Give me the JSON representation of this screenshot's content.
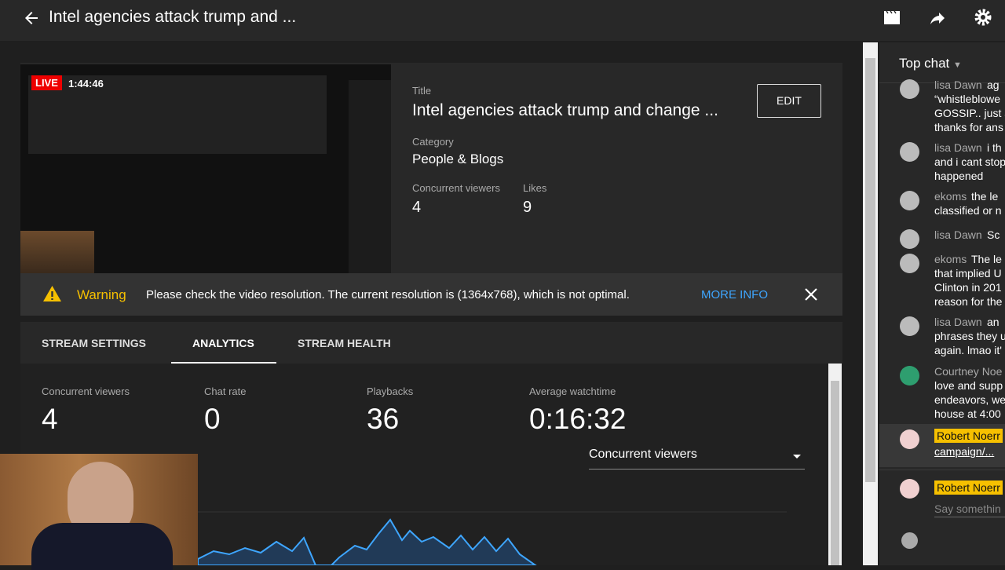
{
  "header": {
    "title": "Intel agencies attack trump and ..."
  },
  "preview": {
    "live": "LIVE",
    "time": "1:44:46"
  },
  "info": {
    "title_label": "Title",
    "title": "Intel agencies attack trump and change ...",
    "edit": "EDIT",
    "category_label": "Category",
    "category": "People & Blogs",
    "stats": [
      {
        "label": "Concurrent viewers",
        "value": "4"
      },
      {
        "label": "Likes",
        "value": "9"
      }
    ]
  },
  "warning": {
    "label": "Warning",
    "message": "Please check the video resolution. The current resolution is (1364x768), which is not optimal.",
    "more": "MORE INFO"
  },
  "tabs": [
    "STREAM SETTINGS",
    "ANALYTICS",
    "STREAM HEALTH"
  ],
  "analytics": {
    "metrics": [
      {
        "label": "Concurrent viewers",
        "value": "4"
      },
      {
        "label": "Chat rate",
        "value": "0"
      },
      {
        "label": "Playbacks",
        "value": "36"
      },
      {
        "label": "Average watchtime",
        "value": "0:16:32"
      }
    ],
    "dropdown": "Concurrent viewers"
  },
  "chat": {
    "header": "Top chat",
    "messages": [
      {
        "author": "lisa Dawn",
        "text": "ag",
        "lines": [
          "“whistleblowe",
          "GOSSIP.. just a",
          "thanks for ans"
        ]
      },
      {
        "author": "lisa Dawn",
        "text": "i th",
        "lines": [
          "and i cant stop",
          "happened"
        ]
      },
      {
        "author": "ekoms",
        "text": "the le",
        "lines": [
          "classified or n"
        ]
      },
      {
        "author": "lisa Dawn",
        "text": "Sc",
        "lines": []
      },
      {
        "author": "ekoms",
        "text": "The le",
        "lines": [
          "that implied U",
          "Clinton in 201",
          "reason for the"
        ]
      },
      {
        "author": "lisa Dawn",
        "text": "an",
        "lines": [
          "phrases they u",
          "again. lmao it'"
        ]
      },
      {
        "author": "Courtney Noe",
        "lines": [
          "love and supp",
          "endeavors, we",
          "house at 4:00"
        ]
      },
      {
        "author": "Robert Noerr",
        "lines": [
          "campaign/..."
        ]
      }
    ],
    "input": {
      "author": "Robert Noerr",
      "placeholder": "Say somethin"
    }
  }
}
